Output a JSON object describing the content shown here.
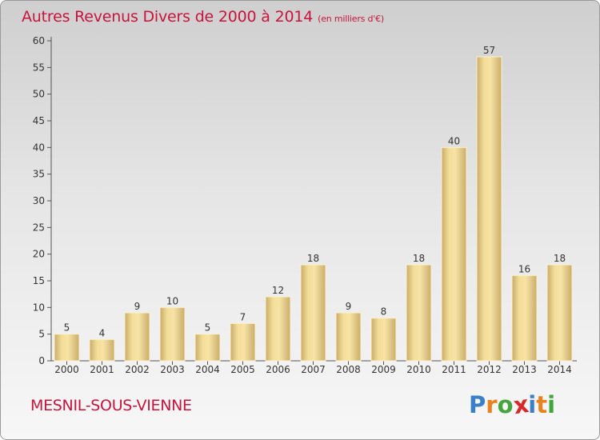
{
  "title": "Autres Revenus Divers de 2000 à 2014",
  "subtitle": "(en milliers d'€)",
  "commune": "MESNIL-SOUS-VIENNE",
  "logo": {
    "text": "Proxiti",
    "letters": [
      {
        "char": "P",
        "color": "#3a7fc8"
      },
      {
        "char": "r",
        "color": "#e8821e"
      },
      {
        "char": "o",
        "color": "#44a53c"
      },
      {
        "char": "x",
        "color": "#d8282a"
      },
      {
        "char": "i",
        "color": "#3a7fc8"
      },
      {
        "char": "t",
        "color": "#e8821e"
      },
      {
        "char": "i",
        "color": "#44a53c"
      }
    ]
  },
  "colors": {
    "accent": "#c8143c",
    "bar_light": "#f7e1a0",
    "bar_dark": "#c9ac69",
    "axis": "#555555",
    "grid": "#999999"
  },
  "chart_data": {
    "type": "bar",
    "title": "Autres Revenus Divers de 2000 à 2014",
    "subtitle": "(en milliers d'€)",
    "categories": [
      "2000",
      "2001",
      "2002",
      "2003",
      "2004",
      "2005",
      "2006",
      "2007",
      "2008",
      "2009",
      "2010",
      "2011",
      "2012",
      "2013",
      "2014"
    ],
    "values": [
      5,
      4,
      9,
      10,
      5,
      7,
      12,
      18,
      9,
      8,
      18,
      40,
      57,
      16,
      18
    ],
    "ylim": [
      0,
      60
    ],
    "yticks": [
      0,
      5,
      10,
      15,
      20,
      25,
      30,
      35,
      40,
      45,
      50,
      55,
      60
    ],
    "grid": false,
    "data_labels": true
  }
}
